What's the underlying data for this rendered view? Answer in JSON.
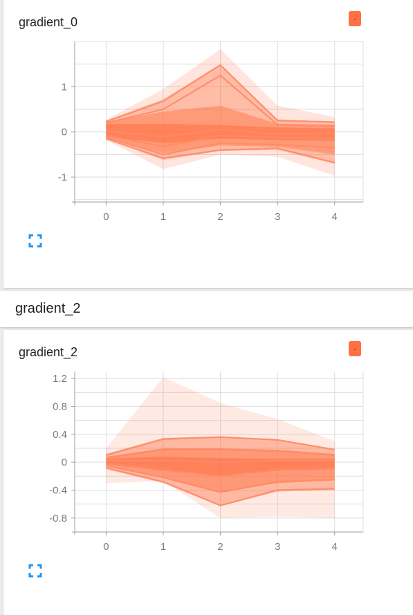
{
  "panels": [
    {
      "card_title": "gradient_0",
      "badge": ".",
      "chart_data": {
        "type": "area",
        "title": "gradient_0",
        "x": [
          0,
          1,
          2,
          3,
          4
        ],
        "xlim": [
          -0.55,
          4.5
        ],
        "ylim": [
          -1.55,
          2.0
        ],
        "xticks": [
          0,
          1,
          2,
          3,
          4
        ],
        "yticks": [
          -1,
          0,
          1
        ],
        "grid": true,
        "bands": [
          {
            "lower": [
              -0.18,
              -0.82,
              -0.5,
              -0.55,
              -0.97
            ],
            "upper": [
              0.27,
              0.95,
              1.83,
              0.58,
              0.33
            ],
            "opacity": 0.18
          },
          {
            "lower": [
              -0.16,
              -0.62,
              -0.42,
              -0.4,
              -0.7
            ],
            "upper": [
              0.25,
              0.72,
              1.5,
              0.28,
              0.22
            ],
            "opacity": 0.35
          },
          {
            "lower": [
              -0.14,
              -0.47,
              -0.3,
              -0.33,
              -0.5
            ],
            "upper": [
              0.22,
              0.45,
              0.58,
              0.18,
              0.16
            ],
            "opacity": 0.45
          },
          {
            "lower": [
              -0.1,
              -0.25,
              -0.15,
              -0.18,
              -0.2
            ],
            "upper": [
              0.18,
              0.18,
              0.15,
              0.1,
              0.08
            ],
            "opacity": 0.55
          }
        ],
        "lines": [
          [
            0.23,
            0.68,
            1.48,
            0.25,
            0.22
          ],
          [
            0.2,
            0.5,
            1.25,
            0.16,
            0.13
          ],
          [
            0.02,
            -0.1,
            0.05,
            -0.05,
            -0.02
          ],
          [
            -0.08,
            -0.32,
            -0.08,
            -0.12,
            -0.15
          ],
          [
            -0.12,
            -0.5,
            -0.25,
            -0.28,
            -0.35
          ],
          [
            -0.15,
            -0.58,
            -0.4,
            -0.36,
            -0.68
          ]
        ]
      }
    },
    {
      "card_title": "gradient_2",
      "badge": ".",
      "chart_data": {
        "type": "area",
        "title": "gradient_2",
        "x": [
          0,
          1,
          2,
          3,
          4
        ],
        "xlim": [
          -0.55,
          4.5
        ],
        "ylim": [
          -1.0,
          1.3
        ],
        "xticks": [
          0,
          1,
          2,
          3,
          4
        ],
        "yticks": [
          1.2,
          0.8,
          0.4,
          0,
          -0.4,
          -0.8
        ],
        "ytick_labels": [
          "1.2",
          "0.8",
          "0.4",
          "0",
          "-0.4",
          "-0.8"
        ],
        "grid": true,
        "bands": [
          {
            "lower": [
              -0.3,
              -0.27,
              -0.8,
              -0.78,
              -0.8
            ],
            "upper": [
              0.2,
              1.22,
              0.85,
              0.62,
              0.3
            ],
            "opacity": 0.15
          },
          {
            "lower": [
              -0.1,
              -0.3,
              -0.63,
              -0.42,
              -0.4
            ],
            "upper": [
              0.12,
              0.35,
              0.37,
              0.33,
              0.19
            ],
            "opacity": 0.4
          },
          {
            "lower": [
              -0.06,
              -0.22,
              -0.43,
              -0.3,
              -0.26
            ],
            "upper": [
              0.08,
              0.2,
              0.2,
              0.18,
              0.12
            ],
            "opacity": 0.45
          },
          {
            "lower": [
              -0.03,
              -0.12,
              -0.2,
              -0.12,
              -0.1
            ],
            "upper": [
              0.05,
              0.08,
              0.06,
              0.05,
              0.05
            ],
            "opacity": 0.55
          }
        ],
        "lines": [
          [
            0.1,
            0.33,
            0.36,
            0.32,
            0.18
          ],
          [
            0.06,
            0.18,
            0.18,
            0.16,
            0.1
          ],
          [
            0.02,
            0.02,
            0.0,
            0.02,
            0.02
          ],
          [
            -0.02,
            -0.1,
            -0.2,
            -0.1,
            -0.08
          ],
          [
            -0.05,
            -0.22,
            -0.43,
            -0.28,
            -0.25
          ],
          [
            -0.08,
            -0.28,
            -0.62,
            -0.4,
            -0.38
          ]
        ]
      }
    }
  ],
  "section_header": "gradient_2",
  "colors": {
    "accent": "#ff7043",
    "band": "#ff7043",
    "line": "#ff8a65",
    "grid": "#dcdcdc",
    "axis": "#9e9e9e",
    "expand_icon": "#2196f3"
  }
}
